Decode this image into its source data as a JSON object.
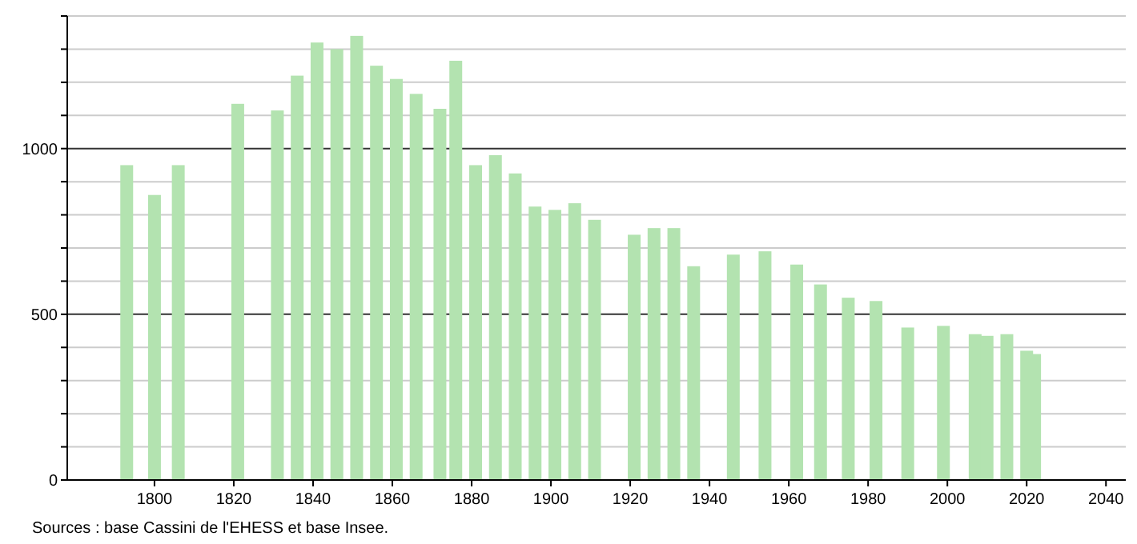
{
  "chart_data": {
    "type": "bar",
    "x": [
      1793,
      1800,
      1806,
      1821,
      1831,
      1836,
      1841,
      1846,
      1851,
      1856,
      1861,
      1866,
      1872,
      1876,
      1881,
      1886,
      1891,
      1896,
      1901,
      1906,
      1911,
      1921,
      1926,
      1931,
      1936,
      1946,
      1954,
      1962,
      1968,
      1975,
      1982,
      1990,
      1999,
      2007,
      2010,
      2015,
      2020,
      2022
    ],
    "values": [
      950,
      860,
      950,
      1135,
      1115,
      1220,
      1320,
      1300,
      1340,
      1250,
      1210,
      1165,
      1120,
      1265,
      950,
      980,
      925,
      825,
      815,
      835,
      785,
      740,
      760,
      760,
      645,
      680,
      690,
      650,
      590,
      550,
      540,
      460,
      465,
      440,
      435,
      440,
      390,
      380
    ],
    "color": "#b3e3b0",
    "xlim": [
      1778,
      2045
    ],
    "xticks": [
      1800,
      1820,
      1840,
      1860,
      1880,
      1900,
      1920,
      1940,
      1960,
      1980,
      2000,
      2020,
      2040
    ],
    "ylim": [
      0,
      1400
    ],
    "yticks": [
      0,
      {
        "value": 100,
        "label": null
      },
      {
        "value": 200,
        "label": null
      },
      {
        "value": 300,
        "label": null
      },
      {
        "value": 400,
        "label": null
      },
      500,
      {
        "value": 600,
        "label": null
      },
      {
        "value": 700,
        "label": null
      },
      {
        "value": 800,
        "label": null
      },
      {
        "value": 900,
        "label": null
      },
      1000,
      {
        "value": 1100,
        "label": null
      },
      {
        "value": 1200,
        "label": null
      },
      {
        "value": 1300,
        "label": null
      },
      {
        "value": 1400,
        "label": null
      }
    ],
    "grid": "y",
    "annotations": [
      "Sources : base Cassini de l'EHESS et base Insee."
    ]
  }
}
